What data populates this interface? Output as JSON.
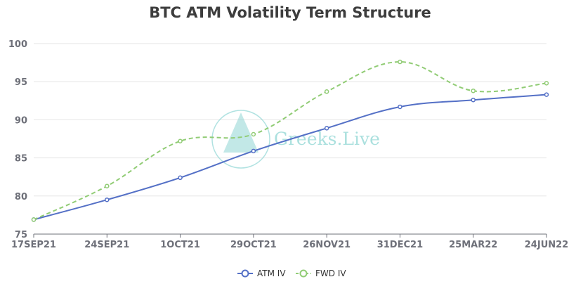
{
  "chart_data": {
    "type": "line",
    "title": "BTC ATM Volatility Term Structure",
    "categories": [
      "17SEP21",
      "24SEP21",
      "1OCT21",
      "29OCT21",
      "26NOV21",
      "31DEC21",
      "25MAR22",
      "24JUN22"
    ],
    "ylim": [
      75,
      100
    ],
    "yticks": [
      75,
      80,
      85,
      90,
      95,
      100
    ],
    "grid": true,
    "legend_position": "bottom-center",
    "series": [
      {
        "name": "ATM IV",
        "values": [
          76.9,
          79.5,
          82.4,
          85.9,
          88.9,
          91.7,
          92.6,
          93.3
        ],
        "color": "#5470c6",
        "style": "solid"
      },
      {
        "name": "FWD IV",
        "values": [
          76.9,
          81.3,
          87.2,
          88.1,
          93.7,
          97.6,
          93.8,
          94.8
        ],
        "color": "#91cc75",
        "style": "dashed"
      }
    ]
  },
  "watermark": {
    "text": "Greeks.Live",
    "color": "#8fd6d4"
  }
}
